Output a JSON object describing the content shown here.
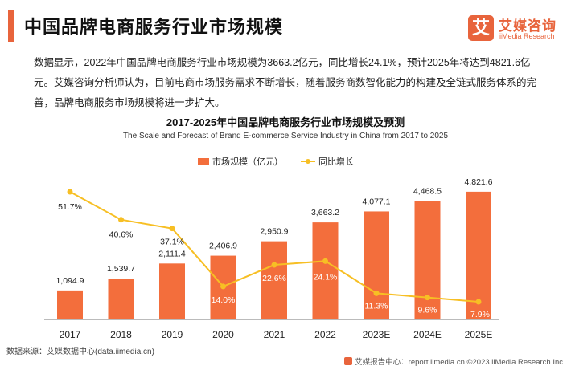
{
  "header": {
    "title": "中国品牌电商服务行业市场规模"
  },
  "logo": {
    "mark": "艾",
    "name": "艾媒咨询",
    "sub": "iiMedia Research"
  },
  "intro": {
    "text": "数据显示，2022年中国品牌电商服务行业市场规模为3663.2亿元，同比增长24.1%，预计2025年将达到4821.6亿元。艾媒咨询分析师认为，目前电商市场服务需求不断增长，随着服务商数智化能力的构建及全链式服务体系的完善，品牌电商服务市场规模将进一步扩大。"
  },
  "footer": {
    "source": "数据来源：艾媒数据中心(data.iimedia.cn)",
    "report": "艾媒报告中心：report.iimedia.cn    ©2023  iiMedia Research  Inc"
  },
  "colors": {
    "bar": "#f36e3c",
    "line": "#f7bf24",
    "accent": "#e8643c"
  },
  "chart_data": {
    "type": "bar",
    "title": "2017-2025年中国品牌电商服务行业市场规模及预测",
    "subtitle": "The Scale and Forecast of Brand E-commerce Service Industry in China from 2017 to 2025",
    "categories": [
      "2017",
      "2018",
      "2019",
      "2020",
      "2021",
      "2022",
      "2023E",
      "2024E",
      "2025E"
    ],
    "series": [
      {
        "name": "市场规模（亿元）",
        "type": "bar",
        "values": [
          1094.9,
          1539.7,
          2111.4,
          2406.9,
          2950.9,
          3663.2,
          4077.1,
          4468.5,
          4821.6
        ],
        "labels": [
          "1,094.9",
          "1,539.7",
          "2,111.4",
          "2,406.9",
          "2,950.9",
          "3,663.2",
          "4,077.1",
          "4,468.5",
          "4,821.6"
        ]
      },
      {
        "name": "同比增长",
        "type": "line",
        "values": [
          51.7,
          40.6,
          37.1,
          14.0,
          22.6,
          24.1,
          11.3,
          9.6,
          7.9
        ],
        "labels": [
          "51.7%",
          "40.6%",
          "37.1%",
          "14.0%",
          "22.6%",
          "24.1%",
          "11.3%",
          "9.6%",
          "7.9%"
        ]
      }
    ],
    "legend_position": "top-center",
    "grid": false
  }
}
